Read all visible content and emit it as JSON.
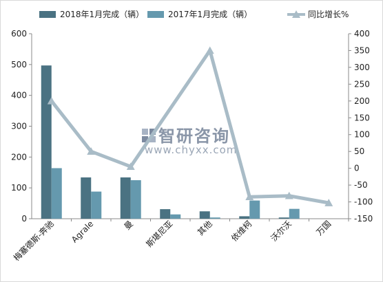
{
  "chart_data": {
    "type": "bar",
    "categories": [
      "梅塞德斯-奔驰",
      "Agrale",
      "曼",
      "斯堪尼亚",
      "其他",
      "依维柯",
      "沃尔沃",
      "万国"
    ],
    "series": [
      {
        "name": "2018年1月完成（辆）",
        "type": "bar",
        "axis": "left",
        "color": "#4a7282",
        "values": [
          497,
          134,
          134,
          31,
          24,
          8,
          4,
          0
        ]
      },
      {
        "name": "2017年1月完成（辆）",
        "type": "bar",
        "axis": "left",
        "color": "#6599ae",
        "values": [
          164,
          88,
          125,
          14,
          4,
          59,
          32,
          0
        ]
      },
      {
        "name": "同比增长%",
        "type": "line",
        "axis": "right",
        "color": "#a9bcc7",
        "values": [
          200,
          50,
          5,
          null,
          350,
          -85,
          -82,
          -103
        ]
      }
    ],
    "left_axis": {
      "min": 0,
      "max": 600,
      "ticks": [
        0,
        100,
        200,
        300,
        400,
        500,
        600
      ]
    },
    "right_axis": {
      "min": -150,
      "max": 400,
      "ticks": [
        -150,
        -100,
        -50,
        0,
        50,
        100,
        150,
        200,
        250,
        300,
        350,
        400
      ]
    },
    "legend_position": "top",
    "grid": false,
    "watermark": {
      "brand": "智研咨询",
      "url": "www.chyxx.com"
    }
  }
}
